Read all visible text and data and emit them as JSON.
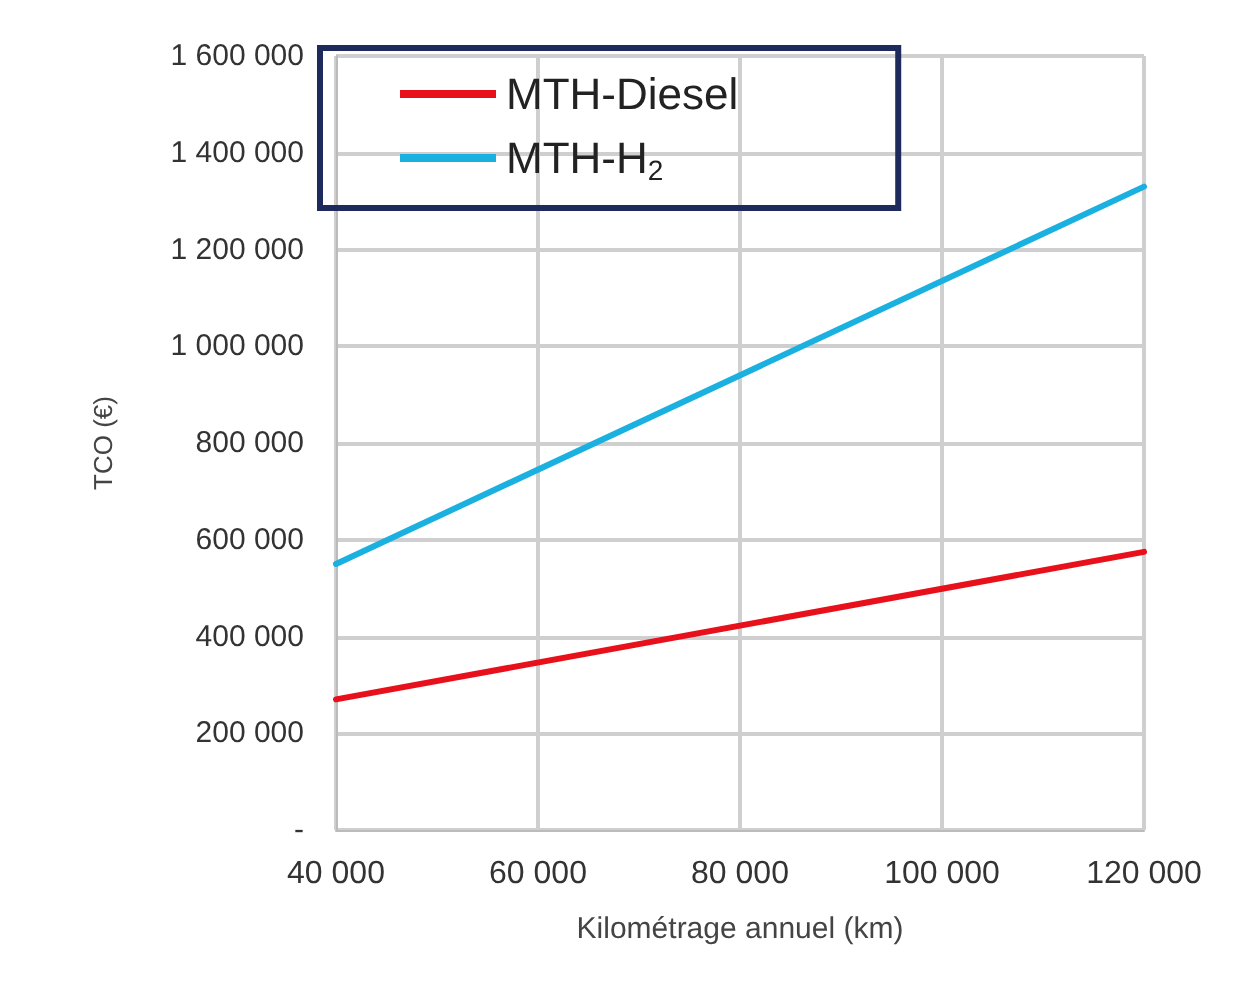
{
  "chart_data": {
    "type": "line",
    "xlabel": "Kilométrage annuel (km)",
    "ylabel": "TCO (€)",
    "x": [
      40000,
      120000
    ],
    "series": [
      {
        "name": "MTH-Diesel",
        "color": "#e8101a",
        "values": [
          270000,
          575000
        ]
      },
      {
        "name": "MTH-H$_{2}$",
        "color": "#1ab0e0",
        "values": [
          550000,
          1330000
        ]
      }
    ],
    "xlim": [
      40000,
      120000
    ],
    "xticks": [
      {
        "value": 40000,
        "label": "40 000"
      },
      {
        "value": 60000,
        "label": "60 000"
      },
      {
        "value": 80000,
        "label": "80 000"
      },
      {
        "value": 100000,
        "label": "100 000"
      },
      {
        "value": 120000,
        "label": "120 000"
      }
    ],
    "ylim": [
      0,
      1600000
    ],
    "yticks": [
      {
        "value": 0,
        "label": "-"
      },
      {
        "value": 200000,
        "label": "200 000"
      },
      {
        "value": 400000,
        "label": "400 000"
      },
      {
        "value": 600000,
        "label": "600 000"
      },
      {
        "value": 800000,
        "label": "800 000"
      },
      {
        "value": 1000000,
        "label": "1 000 000"
      },
      {
        "value": 1200000,
        "label": "1 200 000"
      },
      {
        "value": 1400000,
        "label": "1 400 000"
      },
      {
        "value": 1600000,
        "label": "1 600 000"
      }
    ],
    "grid": true,
    "legend": "top left",
    "marker": "none",
    "line_style": "solid"
  }
}
